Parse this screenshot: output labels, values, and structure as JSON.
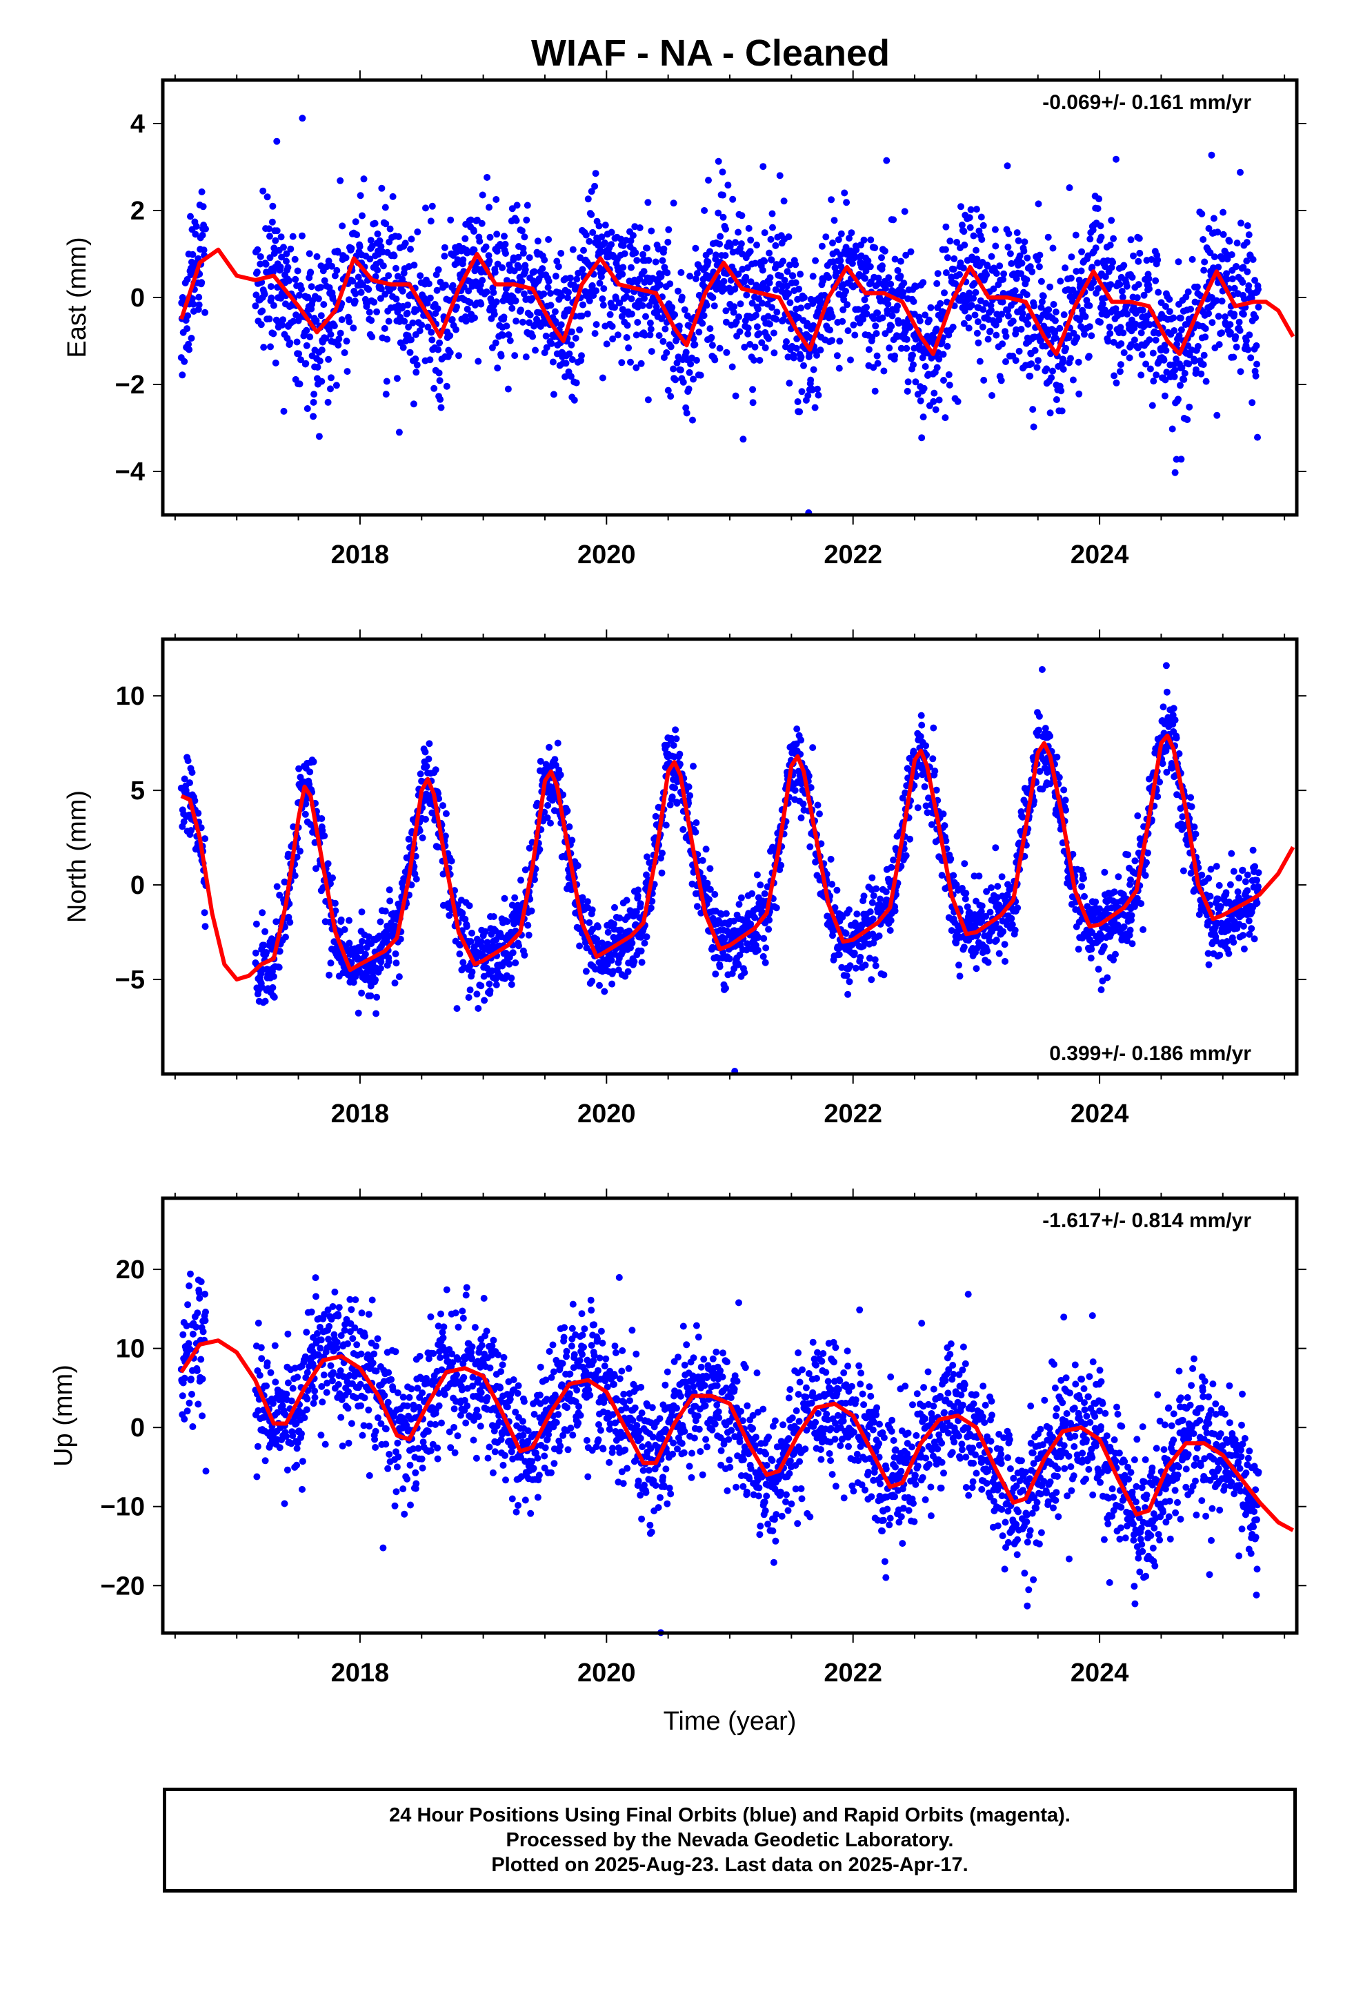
{
  "title": "WIAF  - NA - Cleaned",
  "footer": {
    "line1": "24 Hour Positions Using Final Orbits (blue) and Rapid Orbits (magenta).",
    "line2": "Processed by the Nevada Geodetic Laboratory.",
    "line3": "Plotted on 2025-Aug-23. Last data on 2025-Apr-17."
  },
  "colors": {
    "data": "#0000ff",
    "fit": "#ff0000",
    "frame": "#000000"
  },
  "chart_data": [
    {
      "type": "scatter",
      "ylabel": "East (mm)",
      "xlabel": "",
      "rate_label": "-0.069+/- 0.161 mm/yr",
      "rate_position": "top-right",
      "xlim": [
        2016.4,
        2025.6
      ],
      "ylim": [
        -5,
        5
      ],
      "xticks": [
        2018,
        2020,
        2022,
        2024
      ],
      "yticks": [
        -4,
        -2,
        0,
        2,
        4
      ],
      "data_start": 2016.55,
      "data_end": 2025.29,
      "gap": [
        2016.75,
        2017.15
      ],
      "series": [
        {
          "style": "points",
          "model": {
            "offset": 0.2,
            "trend": -0.069,
            "annual_amp": 0.9,
            "annual_phase": 0.45,
            "semi_amp": 0.4,
            "noise": 0.85
          }
        },
        {
          "style": "fit",
          "points": [
            [
              2016.55,
              -0.5
            ],
            [
              2016.7,
              0.8
            ],
            [
              2016.85,
              1.1
            ],
            [
              2017.0,
              0.5
            ],
            [
              2017.15,
              0.4
            ],
            [
              2017.3,
              0.5
            ],
            [
              2017.5,
              -0.2
            ],
            [
              2017.65,
              -0.8
            ],
            [
              2017.8,
              -0.3
            ],
            [
              2017.95,
              0.9
            ],
            [
              2018.1,
              0.4
            ],
            [
              2018.25,
              0.3
            ],
            [
              2018.4,
              0.3
            ],
            [
              2018.55,
              -0.4
            ],
            [
              2018.65,
              -0.9
            ],
            [
              2018.8,
              0.2
            ],
            [
              2018.95,
              1.0
            ],
            [
              2019.1,
              0.3
            ],
            [
              2019.25,
              0.3
            ],
            [
              2019.4,
              0.2
            ],
            [
              2019.55,
              -0.6
            ],
            [
              2019.65,
              -1.0
            ],
            [
              2019.8,
              0.3
            ],
            [
              2019.95,
              0.9
            ],
            [
              2020.1,
              0.3
            ],
            [
              2020.25,
              0.2
            ],
            [
              2020.4,
              0.1
            ],
            [
              2020.55,
              -0.7
            ],
            [
              2020.65,
              -1.1
            ],
            [
              2020.8,
              0.1
            ],
            [
              2020.95,
              0.8
            ],
            [
              2021.1,
              0.2
            ],
            [
              2021.25,
              0.1
            ],
            [
              2021.4,
              0.0
            ],
            [
              2021.55,
              -0.8
            ],
            [
              2021.65,
              -1.2
            ],
            [
              2021.8,
              0.0
            ],
            [
              2021.95,
              0.7
            ],
            [
              2022.1,
              0.1
            ],
            [
              2022.25,
              0.1
            ],
            [
              2022.4,
              -0.1
            ],
            [
              2022.55,
              -0.9
            ],
            [
              2022.65,
              -1.3
            ],
            [
              2022.8,
              -0.1
            ],
            [
              2022.95,
              0.7
            ],
            [
              2023.1,
              0.0
            ],
            [
              2023.25,
              0.0
            ],
            [
              2023.4,
              -0.1
            ],
            [
              2023.55,
              -0.9
            ],
            [
              2023.65,
              -1.3
            ],
            [
              2023.8,
              -0.2
            ],
            [
              2023.95,
              0.6
            ],
            [
              2024.1,
              -0.1
            ],
            [
              2024.25,
              -0.1
            ],
            [
              2024.4,
              -0.2
            ],
            [
              2024.55,
              -1.0
            ],
            [
              2024.65,
              -1.3
            ],
            [
              2024.8,
              -0.3
            ],
            [
              2024.95,
              0.6
            ],
            [
              2025.1,
              -0.2
            ],
            [
              2025.25,
              -0.1
            ],
            [
              2025.35,
              -0.1
            ],
            [
              2025.45,
              -0.3
            ],
            [
              2025.57,
              -0.9
            ]
          ]
        }
      ]
    },
    {
      "type": "scatter",
      "ylabel": "North (mm)",
      "xlabel": "",
      "rate_label": "0.399+/- 0.186 mm/yr",
      "rate_position": "bottom-right",
      "xlim": [
        2016.4,
        2025.6
      ],
      "ylim": [
        -10,
        13
      ],
      "xticks": [
        2018,
        2020,
        2022,
        2024
      ],
      "yticks": [
        -5,
        0,
        5,
        10
      ],
      "data_start": 2016.55,
      "data_end": 2025.29,
      "gap": [
        2016.75,
        2017.15
      ],
      "series": [
        {
          "style": "points",
          "model": {
            "noise": 1.05
          }
        },
        {
          "style": "fit",
          "points": [
            [
              2016.55,
              4.7
            ],
            [
              2016.62,
              4.5
            ],
            [
              2016.7,
              2.5
            ],
            [
              2016.8,
              -1.5
            ],
            [
              2016.9,
              -4.2
            ],
            [
              2017.0,
              -5.0
            ],
            [
              2017.1,
              -4.8
            ],
            [
              2017.2,
              -4.2
            ],
            [
              2017.3,
              -3.9
            ],
            [
              2017.4,
              -1.0
            ],
            [
              2017.5,
              3.5
            ],
            [
              2017.55,
              5.2
            ],
            [
              2017.6,
              4.7
            ],
            [
              2017.7,
              1.0
            ],
            [
              2017.8,
              -2.5
            ],
            [
              2017.92,
              -4.5
            ],
            [
              2018.0,
              -4.2
            ],
            [
              2018.2,
              -3.5
            ],
            [
              2018.3,
              -2.8
            ],
            [
              2018.4,
              0.5
            ],
            [
              2018.5,
              5.0
            ],
            [
              2018.55,
              5.6
            ],
            [
              2018.6,
              4.8
            ],
            [
              2018.7,
              1.0
            ],
            [
              2018.8,
              -2.5
            ],
            [
              2018.93,
              -4.2
            ],
            [
              2019.0,
              -4.0
            ],
            [
              2019.2,
              -3.2
            ],
            [
              2019.3,
              -2.5
            ],
            [
              2019.4,
              1.0
            ],
            [
              2019.5,
              5.5
            ],
            [
              2019.55,
              6.0
            ],
            [
              2019.6,
              5.2
            ],
            [
              2019.7,
              1.5
            ],
            [
              2019.8,
              -2.0
            ],
            [
              2019.92,
              -3.8
            ],
            [
              2020.0,
              -3.5
            ],
            [
              2020.2,
              -2.7
            ],
            [
              2020.3,
              -2.0
            ],
            [
              2020.4,
              1.5
            ],
            [
              2020.5,
              6.0
            ],
            [
              2020.55,
              6.5
            ],
            [
              2020.6,
              5.8
            ],
            [
              2020.7,
              2.0
            ],
            [
              2020.8,
              -1.5
            ],
            [
              2020.92,
              -3.4
            ],
            [
              2021.0,
              -3.2
            ],
            [
              2021.2,
              -2.3
            ],
            [
              2021.3,
              -1.5
            ],
            [
              2021.4,
              2.0
            ],
            [
              2021.5,
              6.3
            ],
            [
              2021.55,
              6.8
            ],
            [
              2021.6,
              6.0
            ],
            [
              2021.7,
              2.5
            ],
            [
              2021.8,
              -1.0
            ],
            [
              2021.92,
              -3.0
            ],
            [
              2022.0,
              -2.9
            ],
            [
              2022.2,
              -2.0
            ],
            [
              2022.3,
              -1.2
            ],
            [
              2022.4,
              2.5
            ],
            [
              2022.5,
              6.6
            ],
            [
              2022.55,
              7.1
            ],
            [
              2022.6,
              6.3
            ],
            [
              2022.7,
              3.0
            ],
            [
              2022.8,
              -0.6
            ],
            [
              2022.92,
              -2.6
            ],
            [
              2023.0,
              -2.5
            ],
            [
              2023.2,
              -1.6
            ],
            [
              2023.3,
              -0.8
            ],
            [
              2023.4,
              3.0
            ],
            [
              2023.5,
              7.0
            ],
            [
              2023.55,
              7.5
            ],
            [
              2023.6,
              6.8
            ],
            [
              2023.7,
              3.5
            ],
            [
              2023.8,
              -0.3
            ],
            [
              2023.92,
              -2.2
            ],
            [
              2024.0,
              -2.1
            ],
            [
              2024.2,
              -1.2
            ],
            [
              2024.3,
              -0.3
            ],
            [
              2024.4,
              3.5
            ],
            [
              2024.5,
              7.5
            ],
            [
              2024.55,
              7.9
            ],
            [
              2024.6,
              7.2
            ],
            [
              2024.7,
              4.0
            ],
            [
              2024.8,
              0.0
            ],
            [
              2024.92,
              -1.8
            ],
            [
              2025.0,
              -1.6
            ],
            [
              2025.2,
              -0.9
            ],
            [
              2025.3,
              -0.5
            ],
            [
              2025.45,
              0.6
            ],
            [
              2025.57,
              2.0
            ]
          ]
        }
      ]
    },
    {
      "type": "scatter",
      "ylabel": "Up (mm)",
      "xlabel": "Time (year)",
      "rate_label": "-1.617+/- 0.814 mm/yr",
      "rate_position": "top-right",
      "xlim": [
        2016.4,
        2025.6
      ],
      "ylim": [
        -26,
        29
      ],
      "xticks": [
        2018,
        2020,
        2022,
        2024
      ],
      "yticks": [
        -20,
        -10,
        0,
        10,
        20
      ],
      "data_start": 2016.55,
      "data_end": 2025.29,
      "gap": [
        2016.75,
        2017.15
      ],
      "series": [
        {
          "style": "points",
          "model": {
            "noise": 4.2
          }
        },
        {
          "style": "fit",
          "points": [
            [
              2016.55,
              7.0
            ],
            [
              2016.7,
              10.5
            ],
            [
              2016.85,
              11.0
            ],
            [
              2017.0,
              9.5
            ],
            [
              2017.15,
              6.0
            ],
            [
              2017.3,
              0.5
            ],
            [
              2017.4,
              0.5
            ],
            [
              2017.55,
              5.0
            ],
            [
              2017.7,
              8.5
            ],
            [
              2017.85,
              9.0
            ],
            [
              2018.0,
              7.5
            ],
            [
              2018.15,
              4.0
            ],
            [
              2018.3,
              -1.0
            ],
            [
              2018.4,
              -1.5
            ],
            [
              2018.55,
              3.0
            ],
            [
              2018.7,
              7.0
            ],
            [
              2018.85,
              7.5
            ],
            [
              2019.0,
              6.5
            ],
            [
              2019.15,
              2.0
            ],
            [
              2019.3,
              -3.0
            ],
            [
              2019.4,
              -2.5
            ],
            [
              2019.55,
              2.0
            ],
            [
              2019.7,
              5.5
            ],
            [
              2019.85,
              6.0
            ],
            [
              2020.0,
              4.5
            ],
            [
              2020.15,
              0.0
            ],
            [
              2020.3,
              -4.5
            ],
            [
              2020.4,
              -4.5
            ],
            [
              2020.55,
              0.5
            ],
            [
              2020.7,
              4.0
            ],
            [
              2020.85,
              4.0
            ],
            [
              2021.0,
              3.0
            ],
            [
              2021.15,
              -2.0
            ],
            [
              2021.3,
              -6.0
            ],
            [
              2021.4,
              -5.5
            ],
            [
              2021.55,
              -1.0
            ],
            [
              2021.7,
              2.5
            ],
            [
              2021.85,
              3.0
            ],
            [
              2022.0,
              1.5
            ],
            [
              2022.15,
              -3.0
            ],
            [
              2022.3,
              -7.5
            ],
            [
              2022.4,
              -7.0
            ],
            [
              2022.55,
              -2.0
            ],
            [
              2022.7,
              1.0
            ],
            [
              2022.85,
              1.5
            ],
            [
              2023.0,
              0.0
            ],
            [
              2023.15,
              -5.0
            ],
            [
              2023.3,
              -9.5
            ],
            [
              2023.4,
              -9.0
            ],
            [
              2023.55,
              -4.0
            ],
            [
              2023.7,
              -0.5
            ],
            [
              2023.85,
              0.0
            ],
            [
              2024.0,
              -1.5
            ],
            [
              2024.15,
              -6.5
            ],
            [
              2024.3,
              -11.0
            ],
            [
              2024.4,
              -10.5
            ],
            [
              2024.55,
              -5.0
            ],
            [
              2024.7,
              -2.0
            ],
            [
              2024.85,
              -2.0
            ],
            [
              2025.0,
              -3.5
            ],
            [
              2025.15,
              -6.5
            ],
            [
              2025.3,
              -9.5
            ],
            [
              2025.45,
              -12.0
            ],
            [
              2025.57,
              -13.0
            ]
          ]
        }
      ]
    }
  ]
}
